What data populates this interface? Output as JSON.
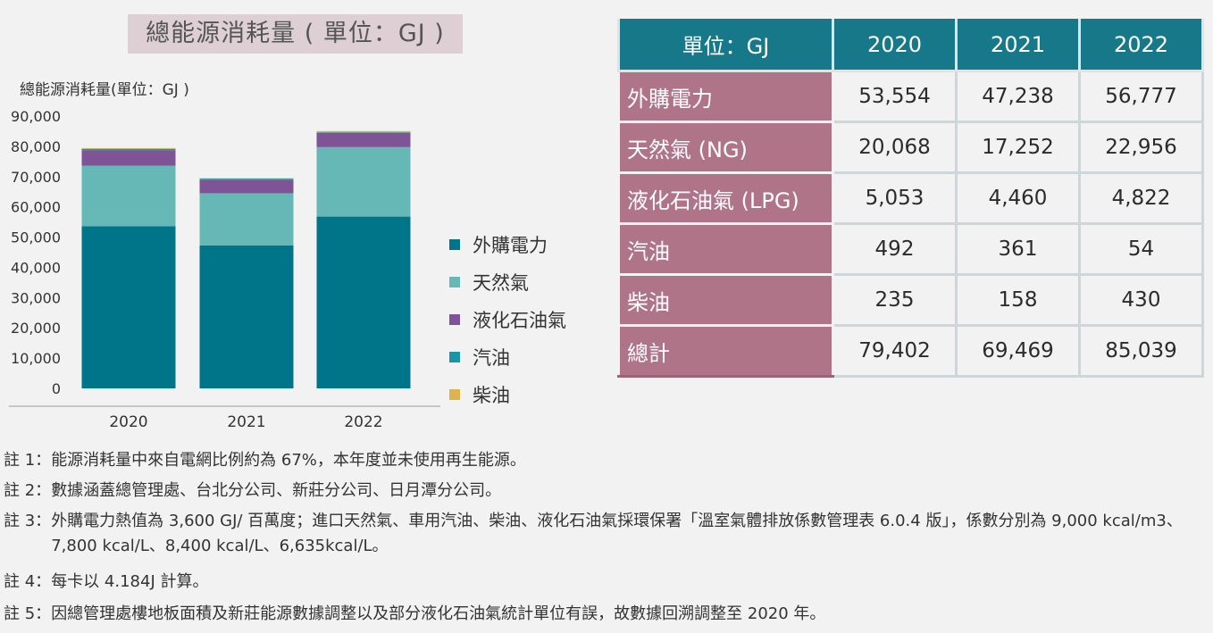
{
  "title": "總能源消耗量 ( 單位：GJ )",
  "chart_data": {
    "type": "bar",
    "stacked": true,
    "ylabel": "總能源消耗量(單位：GJ )",
    "categories": [
      "2020",
      "2021",
      "2022"
    ],
    "ylim": [
      0,
      90000
    ],
    "yticks": [
      "90,000",
      "80,000",
      "70,000",
      "60,000",
      "50,000",
      "40,000",
      "30,000",
      "20,000",
      "10,000",
      "0"
    ],
    "series": [
      {
        "name": "外購電力",
        "values": [
          53554,
          47238,
          56777
        ],
        "color": "#00758a"
      },
      {
        "name": "天然氣",
        "values": [
          20068,
          17252,
          22956
        ],
        "color": "#65b8b5"
      },
      {
        "name": "液化石油氣",
        "values": [
          5053,
          4460,
          4822
        ],
        "color": "#7e5496"
      },
      {
        "name": "汽油",
        "values": [
          492,
          361,
          54
        ],
        "color": "#1796a8"
      },
      {
        "name": "柴油",
        "values": [
          235,
          158,
          430
        ],
        "color": "#dcb34d"
      }
    ],
    "grid": false,
    "legend": "right"
  },
  "table": {
    "header": [
      "單位：GJ",
      "2020",
      "2021",
      "2022"
    ],
    "rows": [
      {
        "label": "外購電力",
        "values": [
          "53,554",
          "47,238",
          "56,777"
        ]
      },
      {
        "label": "天然氣 (NG)",
        "values": [
          "20,068",
          "17,252",
          "22,956"
        ]
      },
      {
        "label": "液化石油氣 (LPG)",
        "values": [
          "5,053",
          "4,460",
          "4,822"
        ]
      },
      {
        "label": "汽油",
        "values": [
          "492",
          "361",
          "54"
        ]
      },
      {
        "label": "柴油",
        "values": [
          "235",
          "158",
          "430"
        ]
      },
      {
        "label": "總計",
        "values": [
          "79,402",
          "69,469",
          "85,039"
        ]
      }
    ]
  },
  "notes": [
    {
      "label": "註 1：",
      "text": "能源消耗量中來自電網比例約為 67%，本年度並未使用再生能源。"
    },
    {
      "label": "註 2：",
      "text": "數據涵蓋總管理處、台北分公司、新莊分公司、日月潭分公司。"
    },
    {
      "label": "註 3：",
      "text": "外購電力熱值為 3,600 GJ/ 百萬度；進口天然氣、車用汽油、柴油、液化石油氣採環保署「溫室氣體排放係數管理表 6.0.4 版」，係數分別為 9,000 kcal/m3、7,800 kcal/L、8,400 kcal/L、6,635kcal/L。"
    },
    {
      "label": "註 4：",
      "text": "每卡以 4.184J 計算。"
    },
    {
      "label": "註 5：",
      "text": "因總管理處樓地板面積及新莊能源數據調整以及部分液化石油氣統計單位有誤，故數據回溯調整至 2020 年。"
    }
  ]
}
